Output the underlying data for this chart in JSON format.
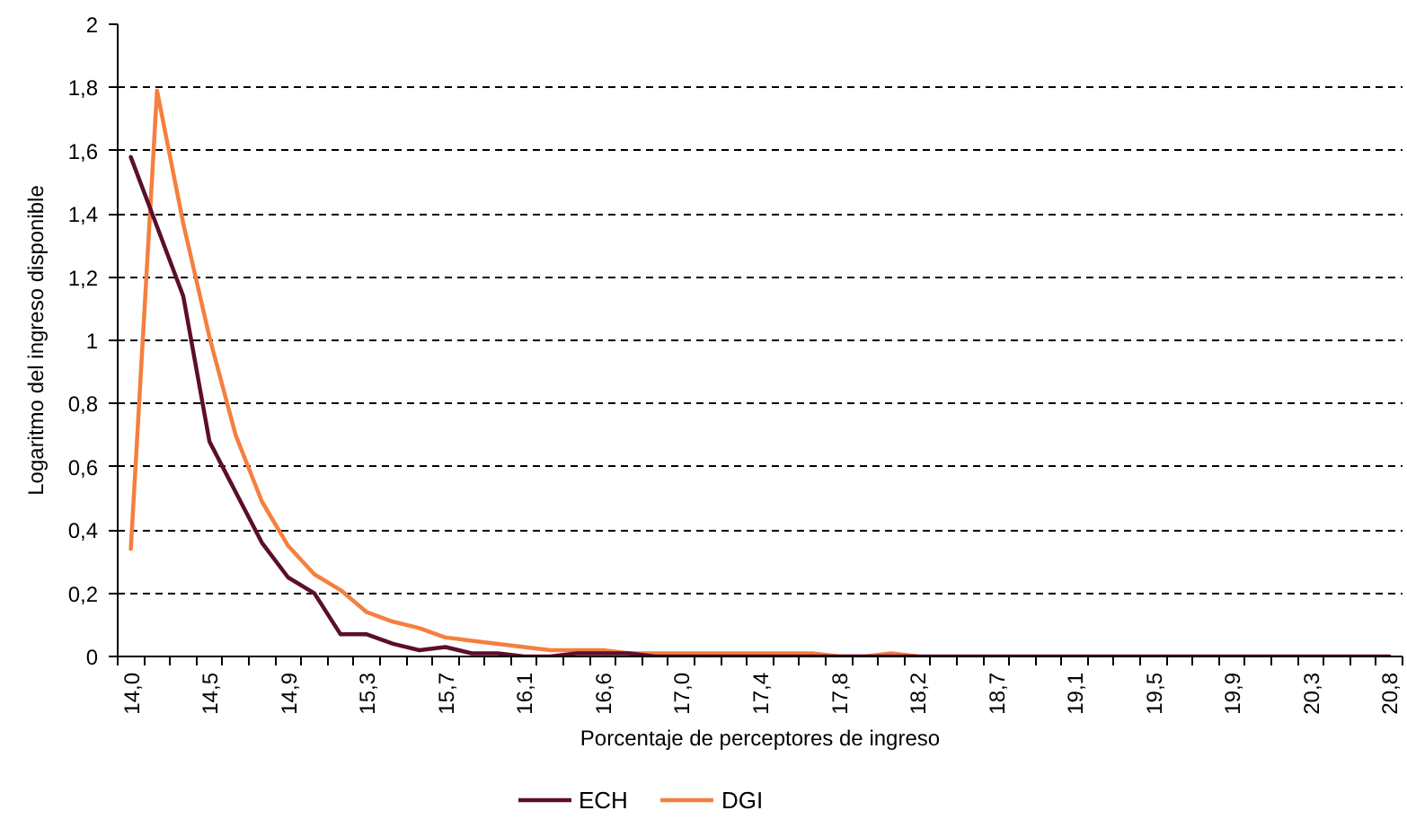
{
  "chart_data": {
    "type": "line",
    "xlabel": "Porcentaje de perceptores de ingreso",
    "ylabel": "Logaritmo del ingreso disponible",
    "categories": [
      "14,0",
      null,
      null,
      "14,5",
      null,
      null,
      "14,9",
      null,
      null,
      "15,3",
      null,
      null,
      "15,7",
      null,
      null,
      "16,1",
      null,
      null,
      "16,6",
      null,
      null,
      "17,0",
      null,
      null,
      "17,4",
      null,
      null,
      "17,8",
      null,
      null,
      "18,2",
      null,
      null,
      "18,7",
      null,
      null,
      "19,1",
      null,
      null,
      "19,5",
      null,
      null,
      "19,9",
      null,
      null,
      "20,3",
      null,
      null,
      "20,8"
    ],
    "series": [
      {
        "name": "ECH",
        "color": "#5b0e2d",
        "values": [
          1.58,
          1.36,
          1.14,
          0.68,
          0.52,
          0.36,
          0.25,
          0.2,
          0.07,
          0.07,
          0.04,
          0.02,
          0.03,
          0.01,
          0.01,
          0,
          0,
          0.01,
          0.01,
          0.01,
          0,
          0,
          0,
          0,
          0,
          0,
          0,
          0,
          0,
          0,
          0,
          0,
          0,
          0,
          0,
          0,
          0,
          0,
          0,
          0,
          0,
          0,
          0,
          0,
          0,
          0,
          0,
          0,
          0
        ]
      },
      {
        "name": "DGI",
        "color": "#f57f3f",
        "values": [
          0.34,
          1.79,
          1.37,
          1.01,
          0.7,
          0.49,
          0.35,
          0.26,
          0.21,
          0.14,
          0.11,
          0.09,
          0.06,
          0.05,
          0.04,
          0.03,
          0.02,
          0.02,
          0.02,
          0.01,
          0.01,
          0.01,
          0.01,
          0.01,
          0.01,
          0.01,
          0.01,
          0,
          0,
          0.01,
          0,
          null,
          null,
          null,
          null,
          null,
          null,
          null,
          null,
          null,
          null,
          null,
          null,
          null,
          null,
          null,
          null,
          null,
          null
        ]
      }
    ],
    "ylim": [
      0,
      2
    ],
    "yticks": [
      0,
      {
        "value": 0.2,
        "label": "0,2"
      },
      {
        "value": 0.4,
        "label": "0,4"
      },
      {
        "value": 0.6,
        "label": "0,6"
      },
      {
        "value": 0.8,
        "label": "0,8"
      },
      1,
      {
        "value": 1.2,
        "label": "1,2"
      },
      {
        "value": 1.4,
        "label": "1,4"
      },
      {
        "value": 1.6,
        "label": "1,6"
      },
      {
        "value": 1.8,
        "label": "1,8"
      },
      2
    ],
    "grid": "y",
    "legend": "bottom",
    "line_style": "solid"
  }
}
